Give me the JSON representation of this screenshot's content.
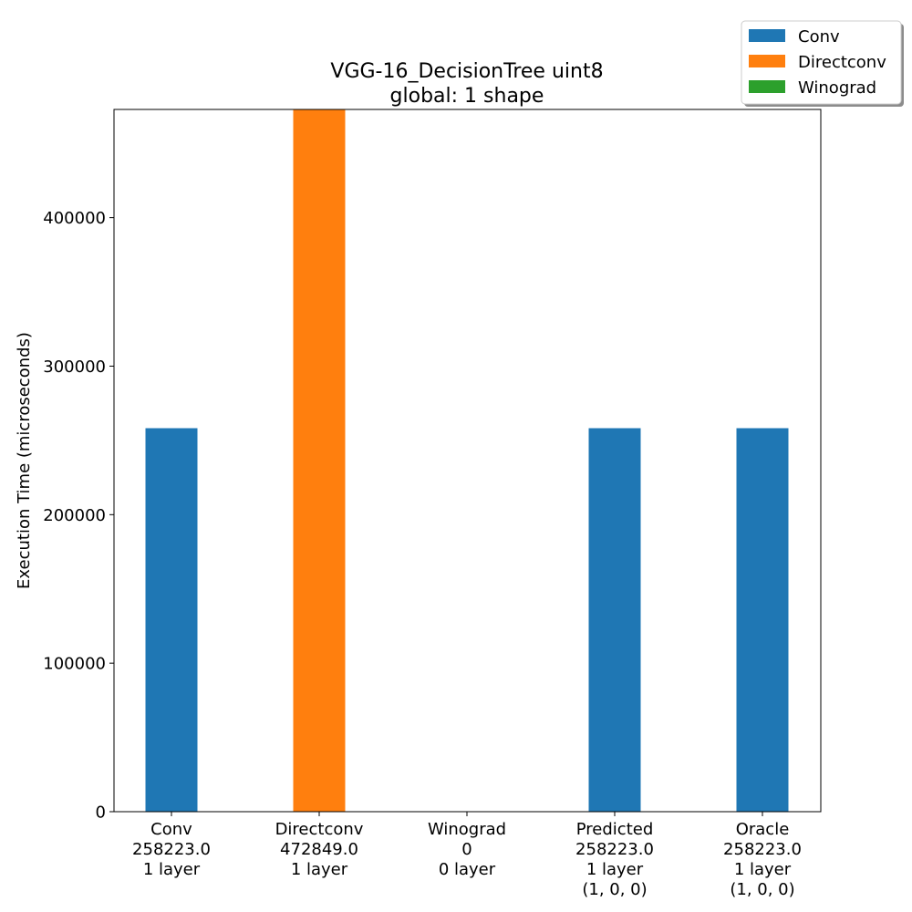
{
  "chart_data": {
    "type": "bar",
    "title": [
      "VGG-16_DecisionTree uint8",
      "global: 1 shape"
    ],
    "xlabel": "",
    "ylabel": "Execution Time (microseconds)",
    "ylim": [
      0,
      472849
    ],
    "yticks": [
      0,
      100000,
      200000,
      300000,
      400000
    ],
    "ytick_labels": [
      "0",
      "100000",
      "200000",
      "300000",
      "400000"
    ],
    "grid": false,
    "legend_position": "top-right",
    "legend": [
      {
        "name": "Conv",
        "color": "#1f77b4"
      },
      {
        "name": "Directconv",
        "color": "#ff7f0e"
      },
      {
        "name": "Winograd",
        "color": "#2ca02c"
      }
    ],
    "categories": [
      {
        "lines": [
          "Conv",
          "258223.0",
          "1 layer"
        ],
        "value": 258223.0,
        "color": "#1f77b4"
      },
      {
        "lines": [
          "Directconv",
          "472849.0",
          "1 layer"
        ],
        "value": 472849.0,
        "color": "#ff7f0e"
      },
      {
        "lines": [
          "Winograd",
          "0",
          "0 layer"
        ],
        "value": 0,
        "color": "#2ca02c"
      },
      {
        "lines": [
          "Predicted",
          "258223.0",
          "1 layer",
          "(1, 0, 0)"
        ],
        "value": 258223.0,
        "color": "#1f77b4"
      },
      {
        "lines": [
          "Oracle",
          "258223.0",
          "1 layer",
          "(1, 0, 0)"
        ],
        "value": 258223.0,
        "color": "#1f77b4"
      }
    ]
  }
}
